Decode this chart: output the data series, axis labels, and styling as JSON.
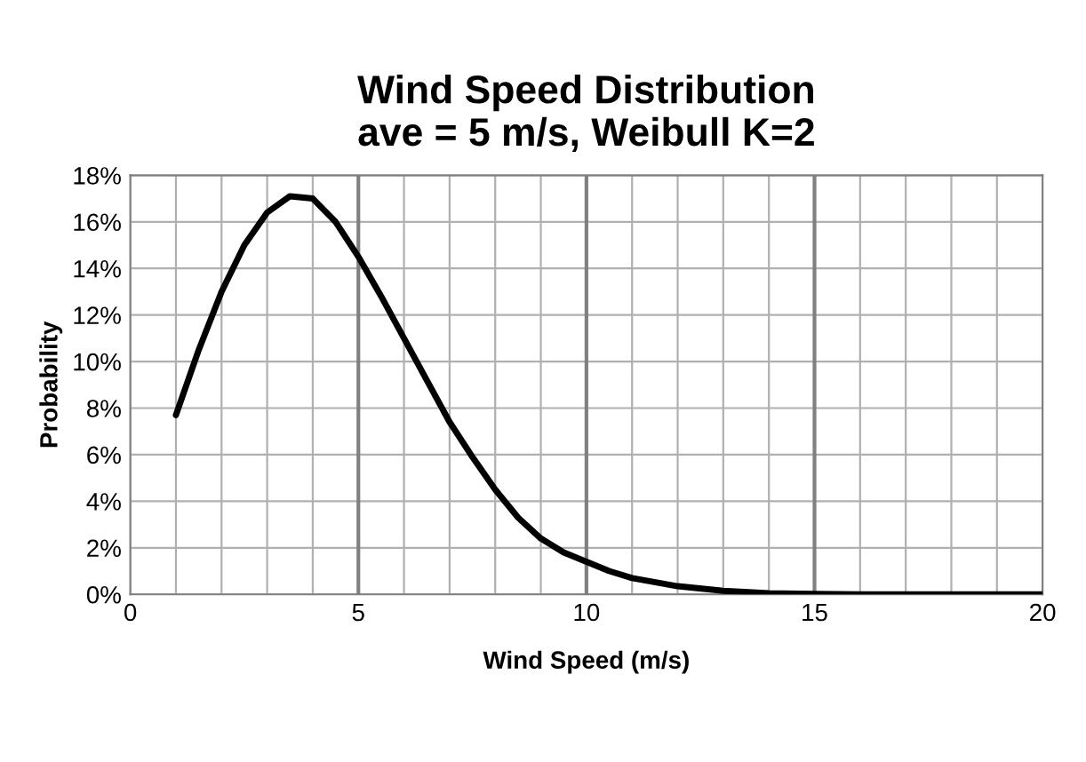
{
  "chart_data": {
    "type": "line",
    "title": "Wind Speed Distribution\nave = 5 m/s, Weibull K=2",
    "xlabel": "Wind Speed (m/s)",
    "ylabel": "Probability",
    "x": [
      1,
      1.5,
      2,
      2.5,
      3,
      3.5,
      4,
      4.5,
      5,
      5.5,
      6,
      6.5,
      7,
      7.5,
      8,
      8.5,
      9,
      9.5,
      10,
      10.5,
      11,
      12,
      13,
      14,
      15,
      16,
      17,
      18,
      19,
      20
    ],
    "series": [
      {
        "color": "#000000",
        "values": [
          7.7,
          10.5,
          13.0,
          15.0,
          16.4,
          17.1,
          17.0,
          16.0,
          14.5,
          12.8,
          11.0,
          9.2,
          7.4,
          5.9,
          4.5,
          3.3,
          2.4,
          1.8,
          1.4,
          1.0,
          0.7,
          0.35,
          0.15,
          0.05,
          0.02,
          0,
          0,
          0,
          0,
          0
        ]
      }
    ],
    "xlim": [
      0,
      20
    ],
    "xticks": [
      0,
      {
        "value": 1,
        "label": null
      },
      {
        "value": 2,
        "label": null
      },
      {
        "value": 3,
        "label": null
      },
      {
        "value": 4,
        "label": null
      },
      5,
      {
        "value": 6,
        "label": null
      },
      {
        "value": 7,
        "label": null
      },
      {
        "value": 8,
        "label": null
      },
      {
        "value": 9,
        "label": null
      },
      10,
      {
        "value": 11,
        "label": null
      },
      {
        "value": 12,
        "label": null
      },
      {
        "value": 13,
        "label": null
      },
      {
        "value": 14,
        "label": null
      },
      15,
      {
        "value": 16,
        "label": null
      },
      {
        "value": 17,
        "label": null
      },
      {
        "value": 18,
        "label": null
      },
      {
        "value": 19,
        "label": null
      },
      20
    ],
    "ylim": [
      0,
      18
    ],
    "yticks": [
      {
        "value": 0,
        "label": "0%"
      },
      {
        "value": 2,
        "label": "2%"
      },
      {
        "value": 4,
        "label": "4%"
      },
      {
        "value": 6,
        "label": "6%"
      },
      {
        "value": 8,
        "label": "8%"
      },
      {
        "value": 10,
        "label": "10%"
      },
      {
        "value": 12,
        "label": "12%"
      },
      {
        "value": 14,
        "label": "14%"
      },
      {
        "value": 16,
        "label": "16%"
      },
      {
        "value": 18,
        "label": "18%"
      }
    ],
    "grid": true,
    "marker": "none",
    "line_style": "solid",
    "legend": false
  }
}
